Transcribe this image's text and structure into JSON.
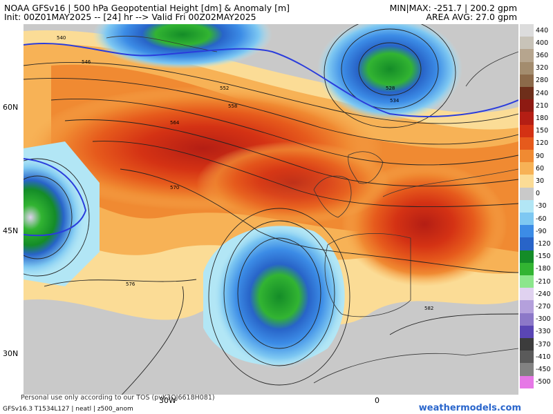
{
  "header": {
    "title": "NOAA GFSv16 | 500 hPa Geopotential Height [dm] & Anomaly [m]",
    "init_line": "Init: 00Z01MAY2025 -- [24] hr --> Valid Fri 00Z02MAY2025",
    "minmax": "MIN|MAX: -251.7 | 200.2 gpm",
    "area_avg": "AREA AVG: 27.0 gpm"
  },
  "lat_labels": [
    "60N",
    "45N",
    "30N"
  ],
  "lon_labels": [
    "30W",
    "0"
  ],
  "contour_labels": {
    "c540": "540",
    "c546": "546",
    "c552": "552",
    "c558": "558",
    "c564": "564",
    "c570": "570",
    "c576": "576",
    "c582": "582",
    "c528": "528",
    "c534": "534"
  },
  "colorbar": {
    "values": [
      "440",
      "400",
      "360",
      "320",
      "280",
      "240",
      "210",
      "180",
      "150",
      "120",
      "90",
      "60",
      "30",
      "0",
      "-30",
      "-60",
      "-90",
      "-120",
      "-150",
      "-180",
      "-210",
      "-240",
      "-270",
      "-300",
      "-330",
      "-370",
      "-410",
      "-450",
      "-500"
    ],
    "colors": [
      "#dcdcdc",
      "#c8c3b8",
      "#b6a58e",
      "#a38c6e",
      "#8c6a4a",
      "#6e2e1a",
      "#8e1a12",
      "#b41e14",
      "#d43214",
      "#e65a1c",
      "#f08a32",
      "#f7b256",
      "#fbdc96",
      "#c9c9c9",
      "#b2e6f5",
      "#7ec8f2",
      "#3c8ce6",
      "#2864c8",
      "#148c28",
      "#32b432",
      "#8ce68c",
      "#e0d2f0",
      "#b4a0dc",
      "#8c78c8",
      "#5a46b4",
      "#3c3c3c",
      "#5a5a5a",
      "#828282",
      "#e678e6"
    ]
  },
  "footer": {
    "tos": "Personal use only according to our TOS (pvK3QJ6618H081)",
    "model": "GFSv16.3 T1534L127 | neatl | z500_anom",
    "brand": "weathermodels.com"
  }
}
